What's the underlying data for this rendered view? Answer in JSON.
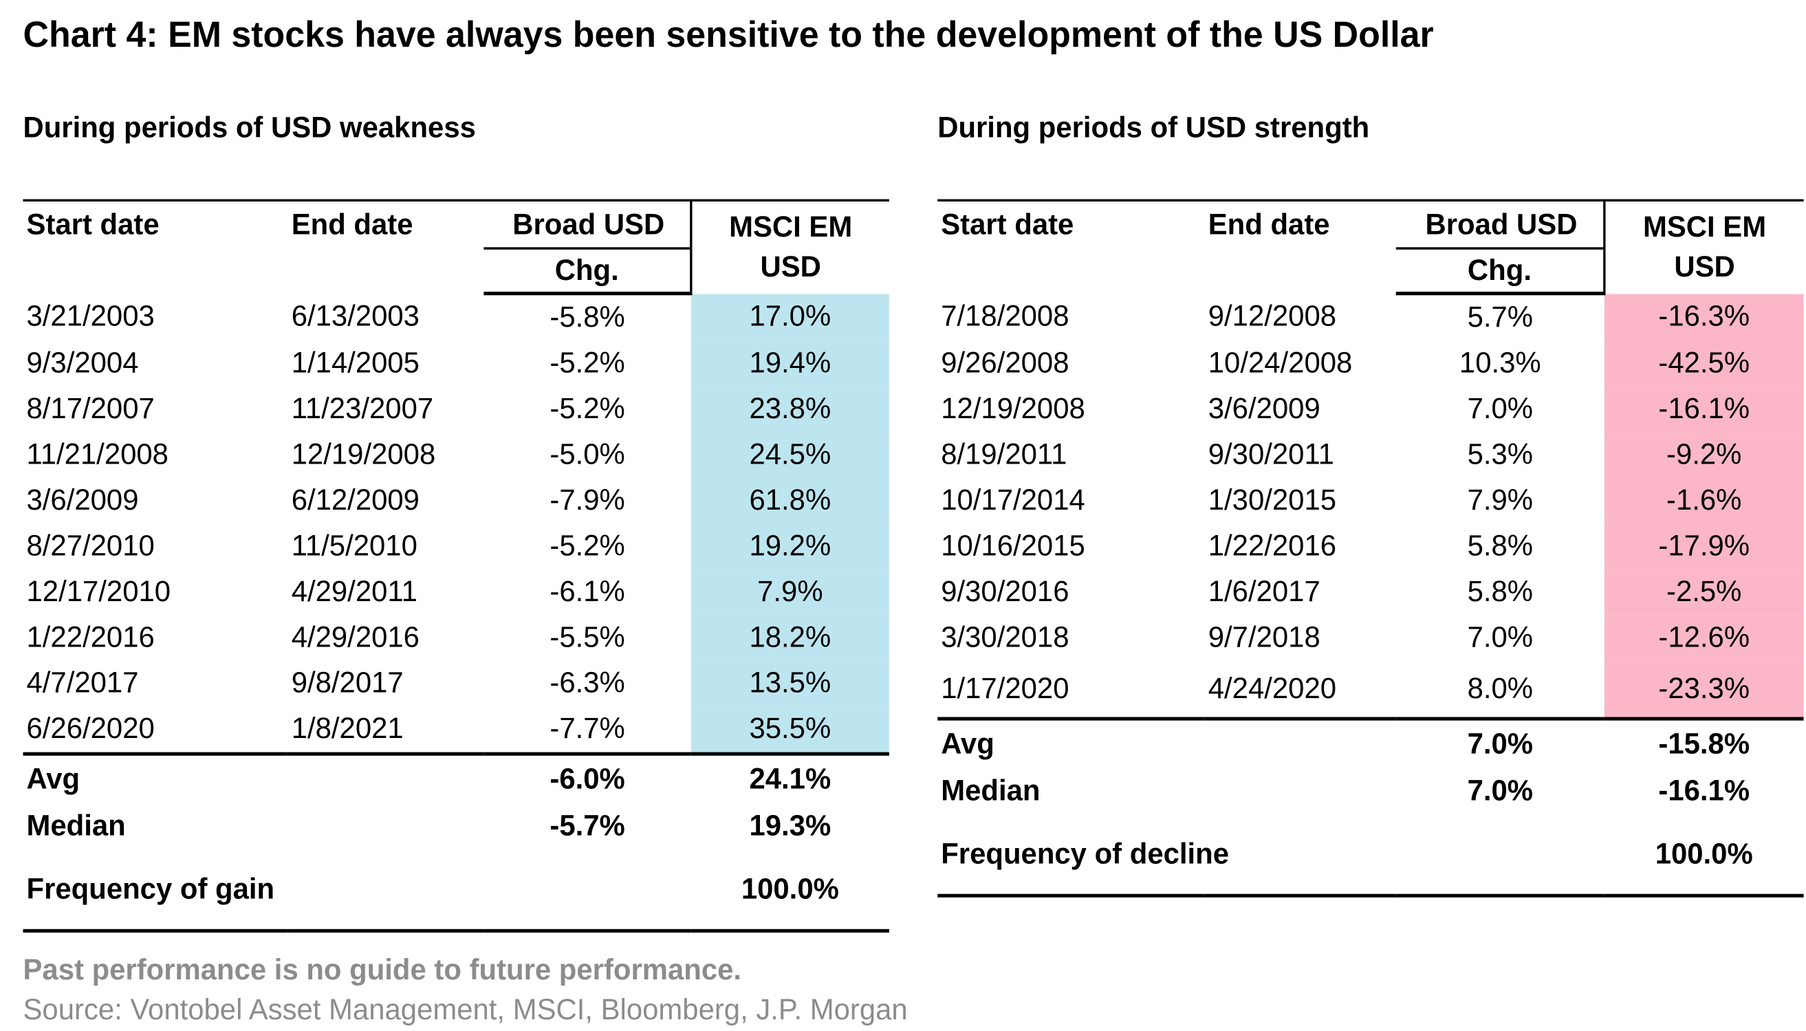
{
  "header": {
    "title": "Chart 4: EM stocks have always been sensitive to the development of the US Dollar"
  },
  "left": {
    "heading": "During periods of USD weakness",
    "columns": [
      "Start date",
      "End date",
      "Broad USD",
      "Chg.",
      "MSCI EM USD"
    ],
    "rows": [
      [
        "3/21/2003",
        "6/13/2003",
        "-5.8%",
        "17.0%"
      ],
      [
        "9/3/2004",
        "1/14/2005",
        "-5.2%",
        "19.4%"
      ],
      [
        "8/17/2007",
        "11/23/2007",
        "-5.2%",
        "23.8%"
      ],
      [
        "11/21/2008",
        "12/19/2008",
        "-5.0%",
        "24.5%"
      ],
      [
        "3/6/2009",
        "6/12/2009",
        "-7.9%",
        "61.8%"
      ],
      [
        "8/27/2010",
        "11/5/2010",
        "-5.2%",
        "19.2%"
      ],
      [
        "12/17/2010",
        "4/29/2011",
        "-6.1%",
        "7.9%"
      ],
      [
        "1/22/2016",
        "4/29/2016",
        "-5.5%",
        "18.2%"
      ],
      [
        "4/7/2017",
        "9/8/2017",
        "-6.3%",
        "13.5%"
      ],
      [
        "6/26/2020",
        "1/8/2021",
        "-7.7%",
        "35.5%"
      ]
    ],
    "summary": [
      [
        "Avg",
        "-6.0%",
        "24.1%"
      ],
      [
        "Median",
        "-5.7%",
        "19.3%"
      ],
      [
        "Frequency of gain",
        "",
        "100.0%"
      ]
    ]
  },
  "right": {
    "heading": "During periods of USD strength",
    "columns": [
      "Start date",
      "End date",
      "Broad USD",
      "Chg.",
      "MSCI EM USD"
    ],
    "rows": [
      [
        "7/18/2008",
        "9/12/2008",
        "5.7%",
        "-16.3%"
      ],
      [
        "9/26/2008",
        "10/24/2008",
        "10.3%",
        "-42.5%"
      ],
      [
        "12/19/2008",
        "3/6/2009",
        "7.0%",
        "-16.1%"
      ],
      [
        "8/19/2011",
        "9/30/2011",
        "5.3%",
        "-9.2%"
      ],
      [
        "10/17/2014",
        "1/30/2015",
        "7.9%",
        "-1.6%"
      ],
      [
        "10/16/2015",
        "1/22/2016",
        "5.8%",
        "-17.9%"
      ],
      [
        "9/30/2016",
        "1/6/2017",
        "5.8%",
        "-2.5%"
      ],
      [
        "3/30/2018",
        "9/7/2018",
        "7.0%",
        "-12.6%"
      ],
      [
        "1/17/2020",
        "4/24/2020",
        "8.0%",
        "-23.3%"
      ]
    ],
    "summary": [
      [
        "Avg",
        "7.0%",
        "-15.8%"
      ],
      [
        "Median",
        "7.0%",
        "-16.1%"
      ],
      [
        "Frequency of decline",
        "",
        "100.0%"
      ]
    ]
  },
  "footer": {
    "disclaimer": "Past performance is no guide to future performance.",
    "source": "Source: Vontobel Asset Management, MSCI, Bloomberg, J.P. Morgan"
  }
}
